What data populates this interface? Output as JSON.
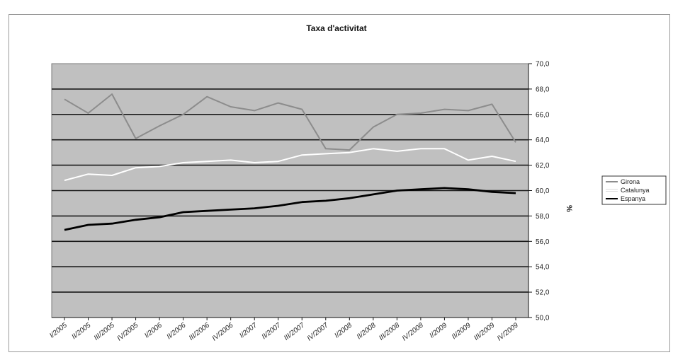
{
  "chart_data": {
    "type": "line",
    "title": "Taxa d'activitat",
    "xlabel": "",
    "ylabel": "%",
    "ylim": [
      50,
      70
    ],
    "y_ticks": [
      "50,0",
      "52,0",
      "54,0",
      "56,0",
      "58,0",
      "60,0",
      "62,0",
      "64,0",
      "66,0",
      "68,0",
      "70,0"
    ],
    "y_axis_position": "right",
    "grid": true,
    "plot_background": "#c0c0c0",
    "legend_position": "right",
    "categories": [
      "I/2005",
      "II/2005",
      "III/2005",
      "IV/2005",
      "I/2006",
      "II/2006",
      "III/2006",
      "IV/2006",
      "I/2007",
      "II/2007",
      "III/2007",
      "IV/2007",
      "I/2008",
      "II/2008",
      "III/2008",
      "IV/2008",
      "I/2009",
      "II/2009",
      "III/2009",
      "IV/2009"
    ],
    "x_tick_labels": [
      "I/2005",
      "II/2005",
      "III/2005",
      "IV/2005",
      "I/2006",
      "II/2006",
      "III/2006",
      "IV/2006",
      "I/2007",
      "II/2007",
      "III/2007",
      "IV/2007",
      "I/2008",
      "II/2008",
      "III/2008",
      "IV/2008",
      "I/2009",
      "II/2009",
      "III/2009",
      "IV/2009"
    ],
    "series": [
      {
        "name": "Girona",
        "color": "#8c8c8c",
        "values": [
          67.2,
          66.1,
          67.6,
          64.1,
          65.1,
          66.0,
          67.4,
          66.6,
          66.3,
          66.9,
          66.4,
          63.3,
          63.2,
          65.0,
          66.0,
          66.1,
          66.4,
          66.3,
          66.8,
          63.8
        ]
      },
      {
        "name": "Catalunya",
        "color": "#ffffff",
        "values": [
          60.8,
          61.3,
          61.2,
          61.8,
          61.9,
          62.2,
          62.3,
          62.4,
          62.2,
          62.3,
          62.8,
          62.9,
          63.0,
          63.3,
          63.1,
          63.3,
          63.3,
          62.4,
          62.7,
          62.3
        ]
      },
      {
        "name": "Espanya",
        "color": "#000000",
        "values": [
          56.9,
          57.3,
          57.4,
          57.7,
          57.9,
          58.3,
          58.4,
          58.5,
          58.6,
          58.8,
          59.1,
          59.2,
          59.4,
          59.7,
          60.0,
          60.1,
          60.2,
          60.1,
          59.9,
          59.8
        ]
      }
    ]
  }
}
